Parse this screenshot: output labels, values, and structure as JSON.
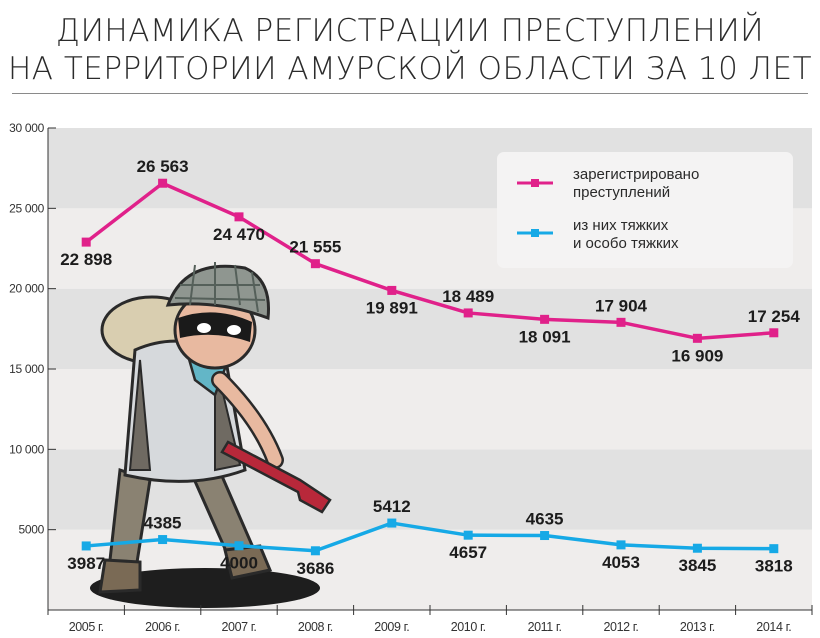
{
  "title_lines": [
    "ДИНАМИКА РЕГИСТРАЦИИ ПРЕСТУПЛЕНИЙ",
    "НА ТЕРРИТОРИИ АМУРСКОЙ ОБЛАСТИ ЗА 10 ЛЕТ"
  ],
  "colors": {
    "registered": "#e0218a",
    "severe": "#16a9e6",
    "band_dark": "#e1e1e1",
    "band_light": "#efedec",
    "axis": "#333333"
  },
  "chart_data": {
    "type": "line",
    "title": "ДИНАМИКА РЕГИСТРАЦИИ ПРЕСТУПЛЕНИЙ НА ТЕРРИТОРИИ АМУРСКОЙ ОБЛАСТИ ЗА 10 ЛЕТ",
    "categories": [
      "2005 г.",
      "2006 г.",
      "2007 г.",
      "2008 г.",
      "2009 г.",
      "2010 г.",
      "2011 г.",
      "2012 г.",
      "2013 г.",
      "2014 г."
    ],
    "ylim": [
      0,
      30000
    ],
    "y_ticks": [
      5000,
      10000,
      15000,
      20000,
      25000,
      30000
    ],
    "y_tick_labels": [
      "5000",
      "10 000",
      "15 000",
      "20 000",
      "25 000",
      "30 000"
    ],
    "grid": false,
    "legend_position": "top-right",
    "series": [
      {
        "name": "зарегистрировано преступлений",
        "legend_lines": [
          "зарегистрировано",
          "преступлений"
        ],
        "values": [
          22898,
          26563,
          24470,
          21555,
          19891,
          18489,
          18091,
          17904,
          16909,
          17254
        ],
        "labels": [
          "22 898",
          "26 563",
          "24 470",
          "21 555",
          "19 891",
          "18 489",
          "18 091",
          "17 904",
          "16 909",
          "17 254"
        ]
      },
      {
        "name": "из них тяжких и особо тяжких",
        "legend_lines": [
          "из них тяжких",
          "и особо тяжких"
        ],
        "values": [
          3987,
          4385,
          4000,
          3686,
          5412,
          4657,
          4635,
          4053,
          3845,
          3818
        ],
        "labels": [
          "3987",
          "4385",
          "4000",
          "3686",
          "5412",
          "4657",
          "4635",
          "4053",
          "3845",
          "3818"
        ]
      }
    ]
  }
}
